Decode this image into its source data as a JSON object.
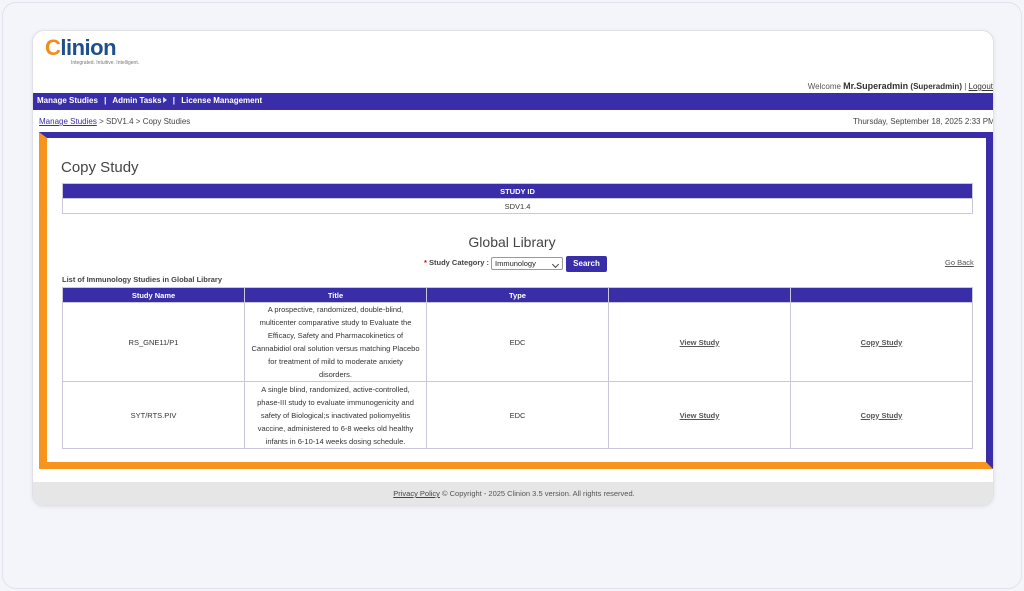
{
  "header": {
    "logo": "Clinion",
    "tagline": "Integrated. Intuitive. Intelligent.",
    "welcome": "Welcome",
    "user": "Mr.Superadmin",
    "role": "(Superadmin)",
    "separator": "|",
    "logout": "Logout"
  },
  "nav": [
    "Manage Studies",
    "Admin Tasks",
    "License Management"
  ],
  "breadcrumb": {
    "items": [
      "Manage Studies",
      "SDV1.4",
      "Copy Studies"
    ],
    "separator": ">"
  },
  "date": "Thursday, September 18, 2025 2:33 PM",
  "page_title": "Copy Study",
  "study_id_table": {
    "header": "STUDY ID",
    "value": "SDV1.4"
  },
  "library": {
    "title": "Global Library",
    "required_mark": "*",
    "category_label": "Study Category :",
    "category_selected": "Immunology",
    "search_button": "Search",
    "go_back": "Go Back",
    "list_title": "List of Immunology Studies in Global Library",
    "columns": [
      "Study Name",
      "Title",
      "Type"
    ],
    "rows": [
      [
        "RS_GNE11/P1",
        "A prospective, randomized, double-blind, multicenter comparative study to Evaluate the Efficacy, Safety and Pharmacokinetics of Cannabidiol oral solution versus matching Placebo for treatment of mild to moderate anxiety disorders.",
        "EDC",
        "View Study",
        "Copy Study"
      ],
      [
        "SYT/RTS.PIV",
        "A single blind, randomized, active-controlled, phase-III study to evaluate immunogenicity and safety of Biological;s inactivated poliomyelitis vaccine, administered to 6-8 weeks old healthy infants in 6-10-14 weeks dosing schedule.",
        "EDC",
        "View Study",
        "Copy Study"
      ]
    ]
  },
  "footer": {
    "privacy": "Privacy Policy",
    "copyright": "© Copyright - 2025 Clinion 3.5 version. All rights reserved."
  }
}
